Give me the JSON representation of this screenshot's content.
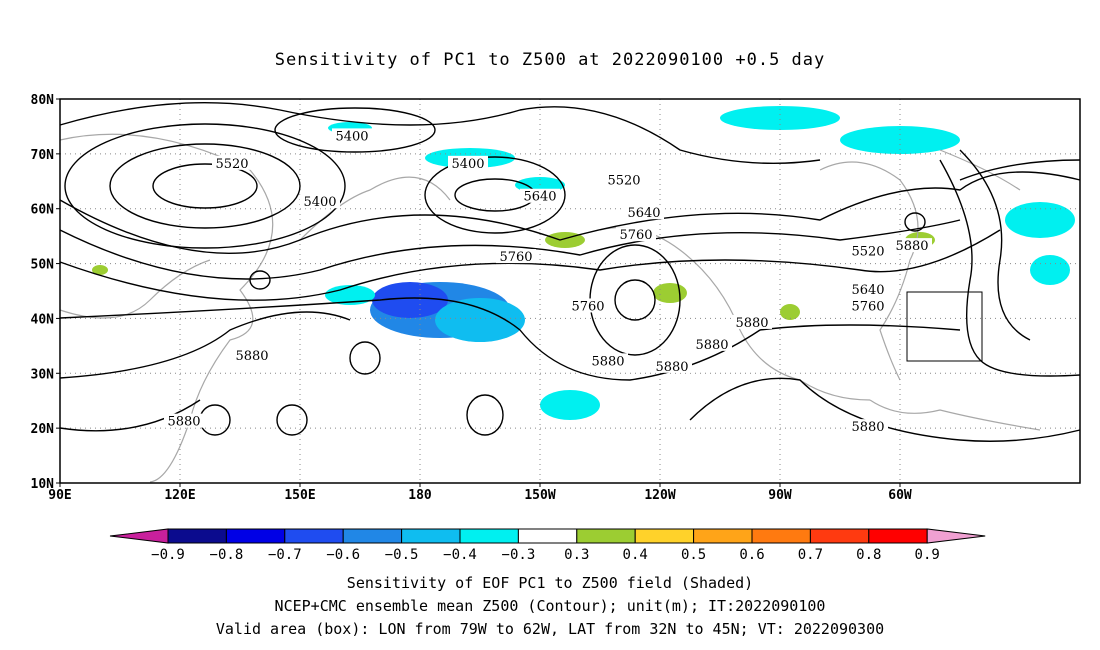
{
  "title": "Sensitivity of PC1 to Z500 at 2022090100 +0.5 day",
  "axes": {
    "lat_labels": [
      "80N",
      "70N",
      "60N",
      "50N",
      "40N",
      "30N",
      "20N",
      "10N"
    ],
    "lon_labels": [
      "90E",
      "120E",
      "150E",
      "180",
      "150W",
      "120W",
      "90W",
      "60W"
    ]
  },
  "contour_labels": [
    {
      "text": "5400",
      "lon": 155,
      "lat": 61
    },
    {
      "text": "5520",
      "lon": 133,
      "lat": 68
    },
    {
      "text": "5400",
      "lon": 163,
      "lat": 73
    },
    {
      "text": "5400",
      "lon": -168,
      "lat": 68
    },
    {
      "text": "5640",
      "lon": -150,
      "lat": 62
    },
    {
      "text": "5520",
      "lon": -129,
      "lat": 65
    },
    {
      "text": "5640",
      "lon": -124,
      "lat": 59
    },
    {
      "text": "5760",
      "lon": -126,
      "lat": 55
    },
    {
      "text": "5760",
      "lon": -156,
      "lat": 51
    },
    {
      "text": "5760",
      "lon": -138,
      "lat": 42
    },
    {
      "text": "5880",
      "lon": -133,
      "lat": 32
    },
    {
      "text": "5880",
      "lon": -107,
      "lat": 35
    },
    {
      "text": "5880",
      "lon": -97,
      "lat": 39
    },
    {
      "text": "5880",
      "lon": -117,
      "lat": 31
    },
    {
      "text": "5880",
      "lon": -68,
      "lat": 20
    },
    {
      "text": "5520",
      "lon": -68,
      "lat": 52
    },
    {
      "text": "5640",
      "lon": -68,
      "lat": 45
    },
    {
      "text": "5760",
      "lon": -68,
      "lat": 42
    },
    {
      "text": "5880",
      "lon": -57,
      "lat": 53
    },
    {
      "text": "5880",
      "lon": 121,
      "lat": 21
    },
    {
      "text": "5880",
      "lon": 138,
      "lat": 33
    }
  ],
  "colorbar": {
    "levels": [
      "-0.9",
      "-0.8",
      "-0.7",
      "-0.6",
      "-0.5",
      "-0.4",
      "-0.3",
      "0.3",
      "0.4",
      "0.5",
      "0.6",
      "0.7",
      "0.8",
      "0.9"
    ],
    "colors": [
      "#0b0b8e",
      "#0000e6",
      "#1f4cf0",
      "#2187e6",
      "#0fbdf0",
      "#00f0f0",
      "#ffffff",
      "#9ccd32",
      "#ffd22a",
      "#ffa418",
      "#ff7a10",
      "#ff3a10",
      "#ff0000"
    ],
    "end_low": "#c8209c",
    "end_high": "#f0a0d2"
  },
  "footer": {
    "line1": "Sensitivity of EOF PC1 to Z500 field (Shaded)",
    "line2": "NCEP+CMC ensemble mean Z500 (Contour); unit(m); IT:2022090100",
    "line3": "Valid area (box): LON from 79W to 62W, LAT from 32N to 45N; VT: 2022090300"
  }
}
